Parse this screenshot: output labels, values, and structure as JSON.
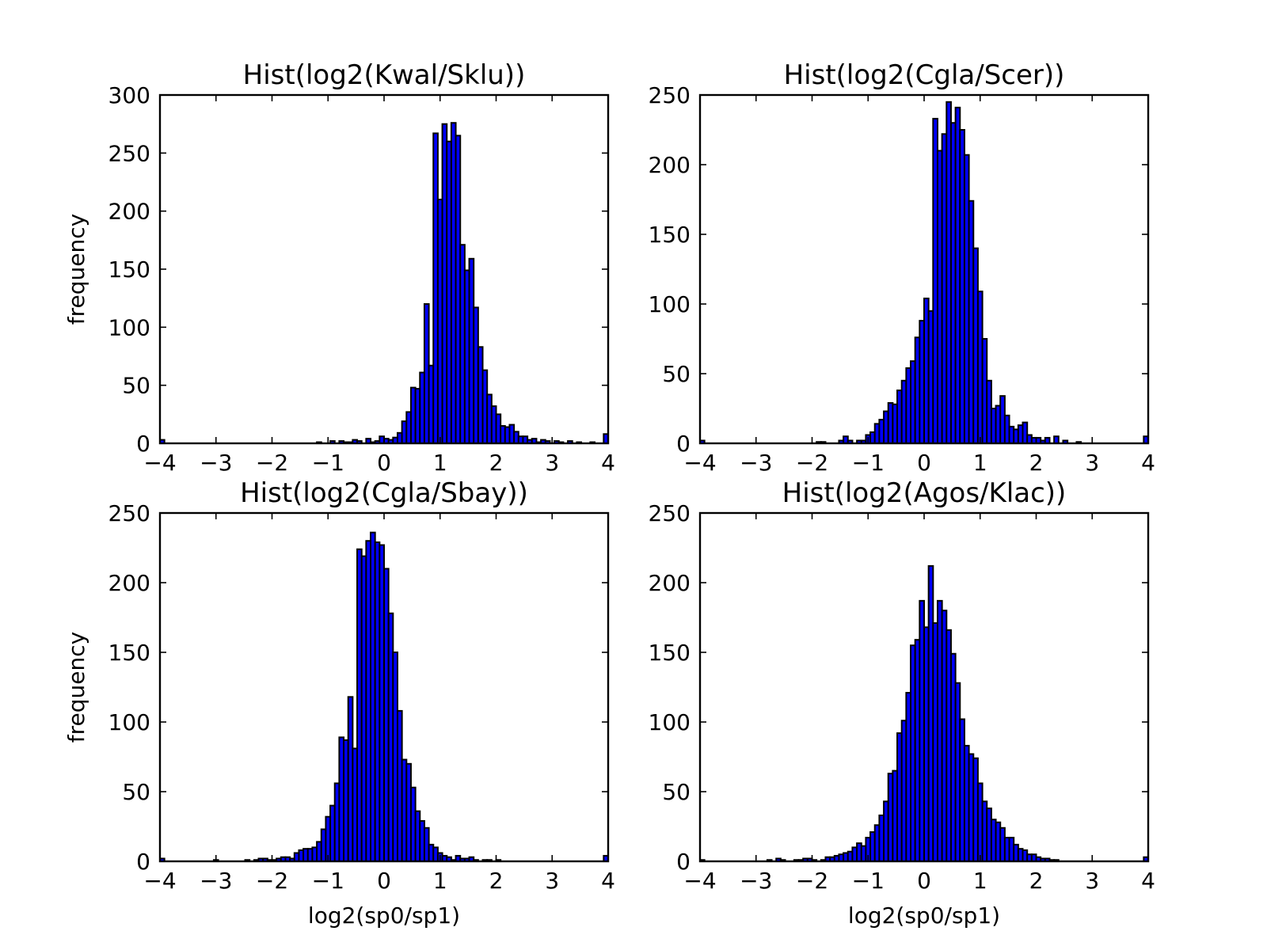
{
  "chart_data": [
    {
      "type": "bar",
      "title": "Hist(log2(Kwal/Sklu))",
      "xlabel": "",
      "ylabel": "frequency",
      "xlim": [
        -4,
        4
      ],
      "ylim": [
        0,
        300
      ],
      "xticks": [
        "−4",
        "−3",
        "−2",
        "−1",
        "0",
        "1",
        "2",
        "3",
        "4"
      ],
      "yticks": [
        "0",
        "50",
        "100",
        "150",
        "200",
        "250",
        "300"
      ],
      "bin_start": -4,
      "bin_width": 0.08,
      "color": "#0000ff",
      "values": [
        3,
        0,
        0,
        0,
        0,
        0,
        0,
        0,
        0,
        0,
        0,
        0,
        0,
        0,
        0,
        0,
        0,
        0,
        0,
        0,
        0,
        0,
        0,
        0,
        0,
        0,
        0,
        0,
        0,
        0,
        0,
        0,
        0,
        0,
        0,
        1,
        0,
        0,
        2,
        0,
        2,
        1,
        1,
        3,
        2,
        0,
        4,
        1,
        2,
        6,
        4,
        3,
        5,
        9,
        19,
        27,
        48,
        47,
        61,
        120,
        67,
        267,
        210,
        275,
        260,
        276,
        265,
        171,
        149,
        159,
        117,
        83,
        63,
        42,
        32,
        25,
        15,
        14,
        16,
        10,
        6,
        6,
        3,
        4,
        1,
        3,
        2,
        0,
        2,
        1,
        0,
        2,
        0,
        1,
        0,
        0,
        1,
        0,
        0,
        8
      ]
    },
    {
      "type": "bar",
      "title": "Hist(log2(Cgla/Scer))",
      "xlabel": "",
      "ylabel": "",
      "xlim": [
        -4,
        4
      ],
      "ylim": [
        0,
        250
      ],
      "xticks": [
        "−4",
        "−3",
        "−2",
        "−1",
        "0",
        "1",
        "2",
        "3",
        "4"
      ],
      "yticks": [
        "0",
        "50",
        "100",
        "150",
        "200",
        "250"
      ],
      "bin_start": -4,
      "bin_width": 0.08,
      "color": "#0000ff",
      "values": [
        2,
        0,
        0,
        0,
        0,
        0,
        0,
        0,
        0,
        0,
        0,
        0,
        0,
        0,
        0,
        0,
        0,
        0,
        0,
        0,
        0,
        0,
        0,
        0,
        0,
        0,
        1,
        1,
        0,
        0,
        0,
        2,
        5,
        2,
        0,
        2,
        2,
        6,
        8,
        14,
        17,
        23,
        29,
        28,
        38,
        45,
        54,
        59,
        76,
        88,
        104,
        95,
        233,
        210,
        222,
        245,
        230,
        241,
        225,
        207,
        174,
        140,
        109,
        75,
        45,
        25,
        27,
        34,
        20,
        12,
        10,
        13,
        15,
        6,
        4,
        4,
        2,
        4,
        0,
        5,
        0,
        2,
        0,
        0,
        1,
        0,
        0,
        0,
        0,
        0,
        0,
        0,
        0,
        0,
        0,
        0,
        0,
        0,
        0,
        5
      ]
    },
    {
      "type": "bar",
      "title": "Hist(log2(Cgla/Sbay))",
      "xlabel": "log2(sp0/sp1)",
      "ylabel": "frequency",
      "xlim": [
        -4,
        4
      ],
      "ylim": [
        0,
        250
      ],
      "xticks": [
        "−4",
        "−3",
        "−2",
        "−1",
        "0",
        "1",
        "2",
        "3",
        "4"
      ],
      "yticks": [
        "0",
        "50",
        "100",
        "150",
        "200",
        "250"
      ],
      "bin_start": -4,
      "bin_width": 0.08,
      "color": "#0000ff",
      "values": [
        2,
        0,
        0,
        0,
        0,
        0,
        0,
        0,
        0,
        0,
        0,
        0,
        1,
        0,
        0,
        0,
        0,
        0,
        0,
        1,
        0,
        1,
        2,
        2,
        1,
        1,
        2,
        3,
        3,
        2,
        6,
        8,
        9,
        9,
        10,
        14,
        23,
        32,
        40,
        56,
        89,
        87,
        118,
        81,
        224,
        219,
        230,
        236,
        229,
        227,
        210,
        178,
        150,
        108,
        73,
        70,
        53,
        36,
        29,
        24,
        12,
        10,
        6,
        4,
        3,
        1,
        4,
        2,
        2,
        3,
        1,
        0,
        1,
        1,
        0,
        1,
        0,
        0,
        0,
        0,
        0,
        0,
        0,
        0,
        0,
        0,
        0,
        0,
        0,
        0,
        0,
        0,
        0,
        0,
        0,
        0,
        0,
        0,
        0,
        4
      ]
    },
    {
      "type": "bar",
      "title": "Hist(log2(Agos/Klac))",
      "xlabel": "log2(sp0/sp1)",
      "ylabel": "",
      "xlim": [
        -4,
        4
      ],
      "ylim": [
        0,
        250
      ],
      "xticks": [
        "−4",
        "−3",
        "−2",
        "−1",
        "0",
        "1",
        "2",
        "3",
        "4"
      ],
      "yticks": [
        "0",
        "50",
        "100",
        "150",
        "200",
        "250"
      ],
      "bin_start": -4,
      "bin_width": 0.08,
      "color": "#0000ff",
      "values": [
        1,
        0,
        0,
        0,
        0,
        0,
        0,
        0,
        0,
        0,
        0,
        0,
        0,
        0,
        0,
        1,
        0,
        2,
        1,
        0,
        0,
        1,
        1,
        2,
        2,
        1,
        0,
        1,
        3,
        3,
        4,
        5,
        6,
        7,
        10,
        13,
        11,
        17,
        21,
        26,
        33,
        43,
        63,
        65,
        92,
        101,
        121,
        155,
        159,
        187,
        168,
        212,
        171,
        187,
        180,
        166,
        149,
        128,
        102,
        83,
        77,
        74,
        56,
        43,
        38,
        30,
        28,
        24,
        17,
        17,
        12,
        9,
        8,
        5,
        5,
        3,
        2,
        2,
        1,
        1,
        0,
        0,
        0,
        0,
        0,
        0,
        0,
        0,
        0,
        0,
        0,
        0,
        0,
        0,
        0,
        0,
        0,
        0,
        0,
        3
      ]
    }
  ]
}
